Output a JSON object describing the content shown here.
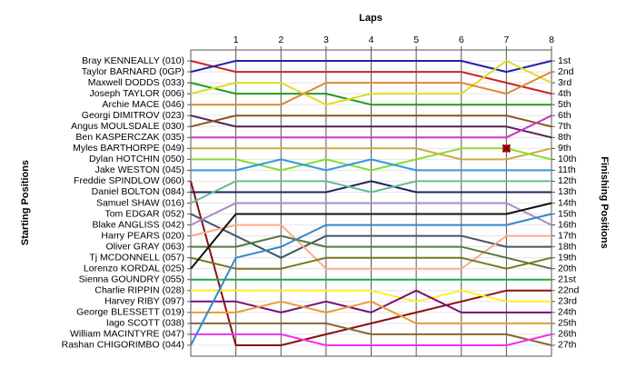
{
  "chart_data": {
    "type": "line",
    "title": "Laps",
    "y_label_left": "Starting Positions",
    "y_label_right": "Finishing Positions",
    "x": [
      0,
      1,
      2,
      3,
      4,
      5,
      6,
      7,
      8
    ],
    "xlim": [
      0,
      8
    ],
    "xticks": [
      1,
      2,
      3,
      4,
      5,
      6,
      7,
      8
    ],
    "ylim": [
      28,
      0
    ],
    "grid": true,
    "finishing_positions": [
      "1st",
      "2nd",
      "3rd",
      "4th",
      "5th",
      "6th",
      "7th",
      "8th",
      "9th",
      "10th",
      "11th",
      "12th",
      "13th",
      "14th",
      "15th",
      "16th",
      "17th",
      "18th",
      "19th",
      "20th",
      "21st",
      "22nd",
      "23rd",
      "24th",
      "25th",
      "26th",
      "27th"
    ],
    "incidents": [
      {
        "x": 7,
        "y": 9
      }
    ],
    "series": [
      {
        "name": "Bray KENNEALLY (010)",
        "color": "#cc2222",
        "values": [
          1,
          2,
          2,
          2,
          2,
          2,
          2,
          3,
          4
        ]
      },
      {
        "name": "Taylor BARNARD (0GP)",
        "color": "#2222aa",
        "values": [
          2,
          1,
          1,
          1,
          1,
          1,
          1,
          2,
          1
        ]
      },
      {
        "name": "Maxwell DODDS (033)",
        "color": "#229922",
        "values": [
          3,
          4,
          4,
          4,
          5,
          5,
          5,
          5,
          5
        ]
      },
      {
        "name": "Joseph TAYLOR (006)",
        "color": "#dddd22",
        "values": [
          4,
          3,
          3,
          5,
          4,
          4,
          4,
          1,
          3
        ]
      },
      {
        "name": "Archie MACE (046)",
        "color": "#dd8833",
        "values": [
          5,
          5,
          5,
          3,
          3,
          3,
          3,
          4,
          2
        ]
      },
      {
        "name": "Georgi DIMITROV (023)",
        "color": "#552255",
        "values": [
          6,
          7,
          7,
          7,
          7,
          7,
          7,
          7,
          8
        ]
      },
      {
        "name": "Angus MOULSDALE (030)",
        "color": "#885522",
        "values": [
          7,
          6,
          6,
          6,
          6,
          6,
          6,
          6,
          7
        ]
      },
      {
        "name": "Ben KASPERCZAK (035)",
        "color": "#cc33cc",
        "values": [
          8,
          8,
          8,
          8,
          8,
          8,
          8,
          8,
          6
        ]
      },
      {
        "name": "Myles BARTHORPE (049)",
        "color": "#ccaa44",
        "values": [
          9,
          9,
          9,
          9,
          9,
          9,
          10,
          10,
          9
        ]
      },
      {
        "name": "Dylan HOTCHIN (050)",
        "color": "#88dd33",
        "values": [
          10,
          10,
          11,
          10,
          11,
          10,
          9,
          9,
          10
        ]
      },
      {
        "name": "Jake WESTON (045)",
        "color": "#3399dd",
        "values": [
          11,
          11,
          10,
          11,
          10,
          11,
          11,
          11,
          11
        ]
      },
      {
        "name": "Freddie SPINDLOW (060)",
        "color": "#881111",
        "values": [
          12,
          27,
          27,
          26,
          25,
          24,
          23,
          22,
          22
        ]
      },
      {
        "name": "Daniel BOLTON (084)",
        "color": "#222266",
        "values": [
          13,
          13,
          13,
          13,
          12,
          13,
          13,
          13,
          13
        ]
      },
      {
        "name": "Samuel SHAW (016)",
        "color": "#66bb99",
        "values": [
          14,
          12,
          12,
          12,
          13,
          12,
          12,
          12,
          12
        ]
      },
      {
        "name": "Tom EDGAR (052)",
        "color": "#445566",
        "values": [
          15,
          17,
          19,
          17,
          17,
          17,
          17,
          18,
          18
        ]
      },
      {
        "name": "Blake ANGLISS (042)",
        "color": "#aa88cc",
        "values": [
          16,
          14,
          14,
          14,
          14,
          14,
          14,
          14,
          16
        ]
      },
      {
        "name": "Harry PEARS (020)",
        "color": "#ffaa88",
        "values": [
          17,
          16,
          16,
          20,
          20,
          20,
          20,
          17,
          17
        ]
      },
      {
        "name": "Oliver GRAY (063)",
        "color": "#557744",
        "values": [
          18,
          18,
          17,
          18,
          18,
          18,
          18,
          19,
          20
        ]
      },
      {
        "name": "Tj MCDONNELL (057)",
        "color": "#777722",
        "values": [
          19,
          20,
          20,
          19,
          19,
          19,
          19,
          20,
          19
        ]
      },
      {
        "name": "Lorenzo KORDAL (025)",
        "color": "#111111",
        "values": [
          20,
          15,
          15,
          15,
          15,
          15,
          15,
          15,
          14
        ]
      },
      {
        "name": "Sienna GOUNDRY (055)",
        "color": "#22aa44",
        "values": [
          21,
          21,
          21,
          21,
          21,
          21,
          21,
          21,
          21
        ]
      },
      {
        "name": "Charlie RIPPIN (028)",
        "color": "#ffee22",
        "values": [
          22,
          22,
          22,
          22,
          22,
          23,
          22,
          23,
          23
        ]
      },
      {
        "name": "Harvey RIBY (097)",
        "color": "#771177",
        "values": [
          23,
          23,
          24,
          23,
          24,
          22,
          24,
          24,
          24
        ]
      },
      {
        "name": "George BLESSETT (019)",
        "color": "#ee9933",
        "values": [
          24,
          24,
          23,
          24,
          23,
          25,
          25,
          25,
          25
        ]
      },
      {
        "name": "Iago SCOTT (038)",
        "color": "#886633",
        "values": [
          25,
          25,
          25,
          25,
          26,
          26,
          26,
          26,
          27
        ]
      },
      {
        "name": "William MACINTYRE (047)",
        "color": "#ee33ee",
        "values": [
          26,
          26,
          26,
          27,
          27,
          27,
          27,
          27,
          26
        ]
      },
      {
        "name": "Rashan CHIGORIMBO (044)",
        "color": "#3388cc",
        "values": [
          27,
          19,
          18,
          16,
          16,
          16,
          16,
          16,
          15
        ]
      }
    ]
  }
}
